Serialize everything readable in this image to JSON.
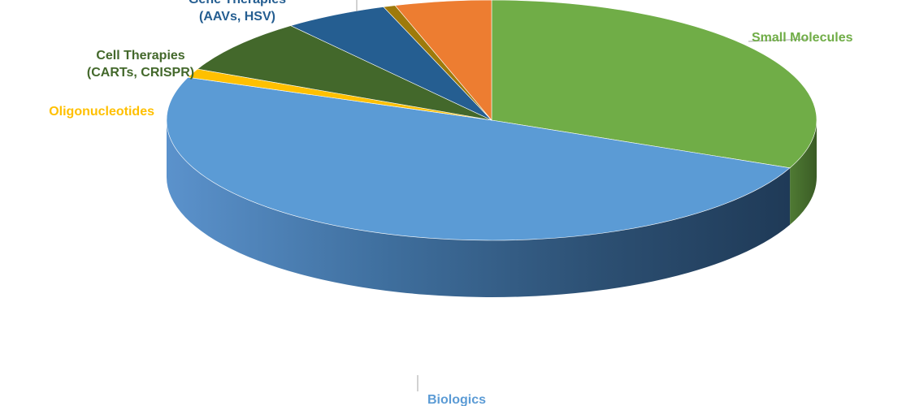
{
  "chart_data": {
    "type": "pie",
    "style": "3d-exploded-perspective",
    "legend": "none",
    "slices": [
      {
        "key": "small",
        "label_lines": [
          "Small Molecules"
        ],
        "value": 31.5,
        "color": "#70ad47"
      },
      {
        "key": "bio",
        "label_lines": [
          "Biologics"
        ],
        "value": 49.3,
        "color": "#5b9bd5"
      },
      {
        "key": "oligo",
        "label_lines": [
          "Oligonucleotides"
        ],
        "value": 1.2,
        "color": "#ffc000"
      },
      {
        "key": "cell",
        "label_lines": [
          "Cell Therapies",
          "(CARTs, CRISPR)"
        ],
        "value": 7.4,
        "color": "#43682b"
      },
      {
        "key": "gene",
        "label_lines": [
          "Gene Therapies",
          "(AAVs, HSV)"
        ],
        "value": 5.2,
        "color": "#255e91"
      },
      {
        "key": "other1",
        "label_lines": [],
        "value": 0.6,
        "color": "#9e7a0b"
      },
      {
        "key": "other2",
        "label_lines": [],
        "value": 4.8,
        "color": "#ed7d31"
      }
    ]
  }
}
